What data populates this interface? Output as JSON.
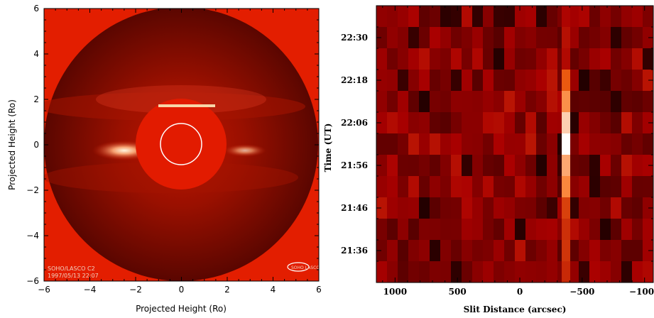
{
  "chart_data": [
    {
      "type": "image",
      "xlabel": "Projected Height (Ro)",
      "ylabel": "Projected Height (Ro)",
      "xlim": [
        -6,
        6
      ],
      "ylim": [
        -6,
        6
      ],
      "x_ticks": [
        "−6",
        "−4",
        "−2",
        "0",
        "2",
        "4",
        "6"
      ],
      "y_ticks": [
        "−6",
        "−4",
        "−2",
        "0",
        "2",
        "4",
        "6"
      ],
      "slit": {
        "x": [
          -1.0,
          1.5
        ],
        "y": 1.65
      },
      "overlay_text": [
        "SOHO/LASCO C2",
        "1997/05/13 22:07"
      ],
      "logo_text": "SOHO LASCO",
      "colors": {
        "background": "#e31e00",
        "occulter": "#e21b00",
        "sun_circle": "#ffffff",
        "slit": "#f7d6a8"
      }
    },
    {
      "type": "heatmap",
      "xlabel": "Slit Distance (arcsec)",
      "ylabel": "Time (UT)",
      "x_ticks": [
        "1000",
        "500",
        "0",
        "−500",
        "−1000"
      ],
      "x_tick_values": [
        1000,
        500,
        0,
        -500,
        -1000
      ],
      "xlim": [
        1150,
        -1070
      ],
      "y_ticks": [
        "21:36",
        "21:46",
        "21:56",
        "22:06",
        "22:18",
        "22:30"
      ],
      "time_rows": 13,
      "bright_column_x": -370,
      "bright_rows_intensity": [
        0.2,
        0.25,
        0.22,
        0.55,
        0.72,
        0.88,
        1.0,
        0.78,
        0.7,
        0.45,
        0.38,
        0.4,
        0.35
      ],
      "colormap": [
        "#140000",
        "#8a0000",
        "#e34a10",
        "#ffffff"
      ]
    }
  ]
}
